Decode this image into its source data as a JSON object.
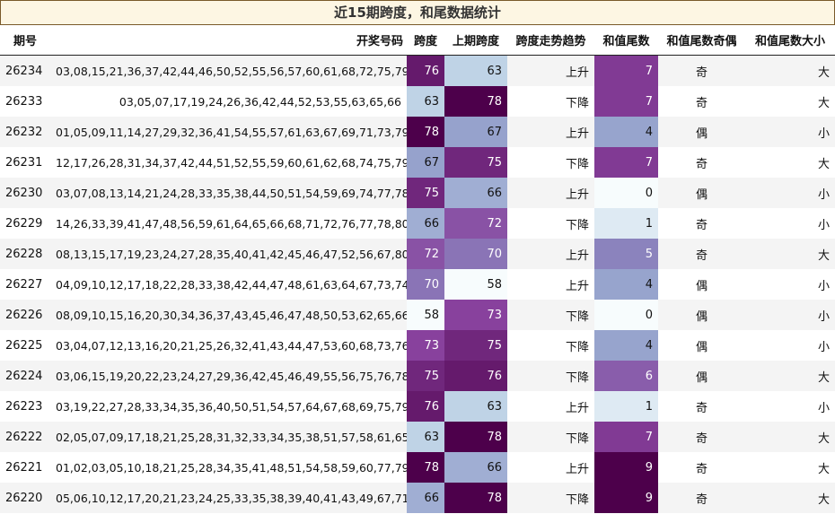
{
  "title": "近15期跨度，和尾数据统计",
  "columns": [
    "期号",
    "开奖号码",
    "跨度",
    "上期跨度",
    "跨度走势趋势",
    "和值尾数",
    "和值尾数奇偶",
    "和值尾数大小"
  ],
  "rows": [
    {
      "issue": "26234",
      "numbers": "03,08,15,21,36,37,42,44,46,50,52,55,56,57,60,61,68,72,75,79",
      "span": 76,
      "prev_span": 63,
      "trend": "上升",
      "tail": 7,
      "parity": "奇",
      "size": "大"
    },
    {
      "issue": "26233",
      "numbers": "03,05,07,17,19,24,26,36,42,44,52,53,55,63,65,66",
      "span": 63,
      "prev_span": 78,
      "trend": "下降",
      "tail": 7,
      "parity": "奇",
      "size": "大"
    },
    {
      "issue": "26232",
      "numbers": "01,05,09,11,14,27,29,32,36,41,54,55,57,61,63,67,69,71,73,79",
      "span": 78,
      "prev_span": 67,
      "trend": "上升",
      "tail": 4,
      "parity": "偶",
      "size": "小"
    },
    {
      "issue": "26231",
      "numbers": "12,17,26,28,31,34,37,42,44,51,52,55,59,60,61,62,68,74,75,79",
      "span": 67,
      "prev_span": 75,
      "trend": "下降",
      "tail": 7,
      "parity": "奇",
      "size": "大"
    },
    {
      "issue": "26230",
      "numbers": "03,07,08,13,14,21,24,28,33,35,38,44,50,51,54,59,69,74,77,78",
      "span": 75,
      "prev_span": 66,
      "trend": "上升",
      "tail": 0,
      "parity": "偶",
      "size": "小"
    },
    {
      "issue": "26229",
      "numbers": "14,26,33,39,41,47,48,56,59,61,64,65,66,68,71,72,76,77,78,80",
      "span": 66,
      "prev_span": 72,
      "trend": "下降",
      "tail": 1,
      "parity": "奇",
      "size": "小"
    },
    {
      "issue": "26228",
      "numbers": "08,13,15,17,19,23,24,27,28,35,40,41,42,45,46,47,52,56,67,80",
      "span": 72,
      "prev_span": 70,
      "trend": "上升",
      "tail": 5,
      "parity": "奇",
      "size": "大"
    },
    {
      "issue": "26227",
      "numbers": "04,09,10,12,17,18,22,28,33,38,42,44,47,48,61,63,64,67,73,74",
      "span": 70,
      "prev_span": 58,
      "trend": "上升",
      "tail": 4,
      "parity": "偶",
      "size": "小"
    },
    {
      "issue": "26226",
      "numbers": "08,09,10,15,16,20,30,34,36,37,43,45,46,47,48,50,53,62,65,66",
      "span": 58,
      "prev_span": 73,
      "trend": "下降",
      "tail": 0,
      "parity": "偶",
      "size": "小"
    },
    {
      "issue": "26225",
      "numbers": "03,04,07,12,13,16,20,21,25,26,32,41,43,44,47,53,60,68,73,76",
      "span": 73,
      "prev_span": 75,
      "trend": "下降",
      "tail": 4,
      "parity": "偶",
      "size": "小"
    },
    {
      "issue": "26224",
      "numbers": "03,06,15,19,20,22,23,24,27,29,36,42,45,46,49,55,56,75,76,78",
      "span": 75,
      "prev_span": 76,
      "trend": "下降",
      "tail": 6,
      "parity": "偶",
      "size": "大"
    },
    {
      "issue": "26223",
      "numbers": "03,19,22,27,28,33,34,35,36,40,50,51,54,57,64,67,68,69,75,79",
      "span": 76,
      "prev_span": 63,
      "trend": "上升",
      "tail": 1,
      "parity": "奇",
      "size": "小"
    },
    {
      "issue": "26222",
      "numbers": "02,05,07,09,17,18,21,25,28,31,32,33,34,35,38,51,57,58,61,65",
      "span": 63,
      "prev_span": 78,
      "trend": "下降",
      "tail": 7,
      "parity": "奇",
      "size": "大"
    },
    {
      "issue": "26221",
      "numbers": "01,02,03,05,10,18,21,25,28,34,35,41,48,51,54,58,59,60,77,79",
      "span": 78,
      "prev_span": 66,
      "trend": "上升",
      "tail": 9,
      "parity": "奇",
      "size": "大"
    },
    {
      "issue": "26220",
      "numbers": "05,06,10,12,17,20,21,23,24,25,33,35,38,39,40,41,43,49,67,71",
      "span": 66,
      "prev_span": 78,
      "trend": "下降",
      "tail": 9,
      "parity": "奇",
      "size": "大"
    }
  ],
  "heat_colors": {
    "span_scale": {
      "min": 58,
      "max": 78
    },
    "tail_scale": {
      "min": 0,
      "max": 9
    },
    "low": "#f7fcfd",
    "mid_low": "#bfd3e6",
    "mid": "#8c96c6",
    "mid_high": "#88419d",
    "high": "#4d004b"
  }
}
